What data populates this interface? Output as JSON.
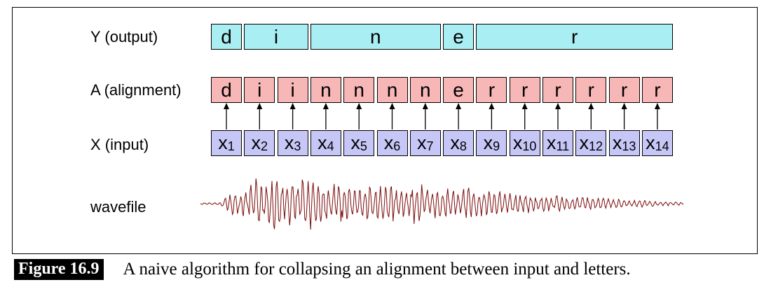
{
  "rows": {
    "y_label": "Y (output)",
    "a_label": "A (alignment)",
    "x_label": "X (input)",
    "wave_label": "wavefile"
  },
  "output": [
    "d",
    "i",
    "n",
    "e",
    "r"
  ],
  "output_spans": [
    1,
    2,
    4,
    1,
    6
  ],
  "alignment": [
    "d",
    "i",
    "i",
    "n",
    "n",
    "n",
    "n",
    "e",
    "r",
    "r",
    "r",
    "r",
    "r",
    "r"
  ],
  "input": [
    {
      "base": "x",
      "sub": "1"
    },
    {
      "base": "x",
      "sub": "2"
    },
    {
      "base": "x",
      "sub": "3"
    },
    {
      "base": "x",
      "sub": "4"
    },
    {
      "base": "x",
      "sub": "5"
    },
    {
      "base": "x",
      "sub": "6"
    },
    {
      "base": "x",
      "sub": "7"
    },
    {
      "base": "x",
      "sub": "8"
    },
    {
      "base": "x",
      "sub": "9"
    },
    {
      "base": "x",
      "sub": "10"
    },
    {
      "base": "x",
      "sub": "11"
    },
    {
      "base": "x",
      "sub": "12"
    },
    {
      "base": "x",
      "sub": "13"
    },
    {
      "base": "x",
      "sub": "14"
    }
  ],
  "colors": {
    "output_fill": "#a9eef2",
    "alignment_fill": "#f7b7b7",
    "input_fill": "#c7c7f7",
    "waveform": "#7a0a0a"
  },
  "caption": {
    "label": "Figure 16.9",
    "text": "A naive algorithm for collapsing an alignment between input and letters."
  }
}
